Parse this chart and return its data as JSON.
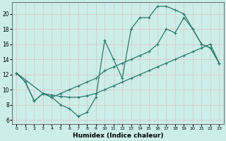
{
  "xlabel": "Humidex (Indice chaleur)",
  "bg_color": "#cceee8",
  "grid_color": "#c8ddd8",
  "line_color": "#2d7a6e",
  "xlim": [
    -0.5,
    23.5
  ],
  "ylim": [
    5.5,
    21.5
  ],
  "xticks": [
    0,
    1,
    2,
    3,
    4,
    5,
    6,
    7,
    8,
    9,
    10,
    11,
    12,
    13,
    14,
    15,
    16,
    17,
    18,
    19,
    20,
    21,
    22,
    23
  ],
  "yticks": [
    6,
    8,
    10,
    12,
    14,
    16,
    18,
    20
  ],
  "curve1_x": [
    0,
    1,
    2,
    3,
    4,
    5,
    6,
    7,
    8,
    9,
    10,
    11,
    12,
    13,
    14,
    15,
    16,
    17,
    18,
    19,
    20,
    21,
    22,
    23
  ],
  "curve1_y": [
    12.2,
    11.0,
    8.5,
    9.5,
    9.0,
    8.0,
    7.5,
    6.5,
    7.0,
    9.0,
    16.5,
    14.0,
    11.5,
    18.0,
    19.5,
    19.5,
    21.0,
    21.0,
    20.5,
    20.0,
    18.0,
    16.0,
    15.5,
    13.5
  ],
  "curve2_x": [
    0,
    3,
    4,
    5,
    6,
    7,
    8,
    9,
    10,
    11,
    12,
    13,
    14,
    15,
    16,
    17,
    18,
    19,
    20,
    21,
    22,
    23
  ],
  "curve2_y": [
    12.2,
    9.5,
    9.0,
    9.5,
    10.0,
    10.5,
    11.0,
    11.5,
    12.5,
    13.0,
    13.5,
    14.0,
    14.5,
    15.0,
    16.0,
    18.0,
    17.5,
    19.5,
    18.0,
    16.0,
    15.5,
    13.5
  ],
  "curve3_x": [
    0,
    1,
    2,
    3,
    4,
    5,
    6,
    7,
    8,
    9,
    10,
    11,
    12,
    13,
    14,
    15,
    16,
    17,
    18,
    19,
    20,
    21,
    22,
    23
  ],
  "curve3_y": [
    12.2,
    11.0,
    8.5,
    9.5,
    9.3,
    9.1,
    9.0,
    9.0,
    9.2,
    9.5,
    10.0,
    10.5,
    11.0,
    11.5,
    12.0,
    12.5,
    13.0,
    13.5,
    14.0,
    14.5,
    15.0,
    15.5,
    16.0,
    13.5
  ]
}
